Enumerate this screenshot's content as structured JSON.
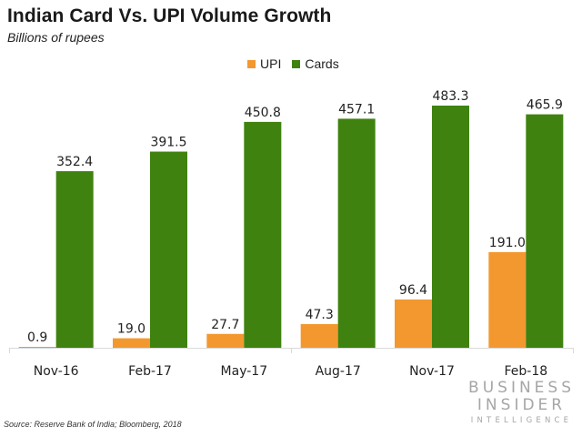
{
  "header": {
    "title": "Indian Card Vs. UPI Volume Growth",
    "subtitle": "Billions of rupees"
  },
  "footer": {
    "source": "Source: Reserve Bank of India;  Bloomberg, 2018",
    "logo": {
      "line1": "BUSINESS",
      "line2": "INSIDER",
      "line3": "INTELLIGENCE"
    }
  },
  "colors": {
    "upi": "#F3982F",
    "cards": "#3F820F",
    "axis": "#d9d9d9",
    "logo": "#a6a6a6"
  },
  "chart_data": {
    "type": "bar",
    "title": "Indian Card Vs. UPI Volume Growth",
    "subtitle": "Billions of rupees",
    "xlabel": "",
    "ylabel": "",
    "categories": [
      "Nov-16",
      "Feb-17",
      "May-17",
      "Aug-17",
      "Nov-17",
      "Feb-18"
    ],
    "series": [
      {
        "name": "UPI",
        "color": "#F3982F",
        "values": [
          0.9,
          19.0,
          27.7,
          47.3,
          96.4,
          191.0
        ],
        "labels": [
          "0.9",
          "19.0",
          "27.7",
          "47.3",
          "96.4",
          "191.0"
        ]
      },
      {
        "name": "Cards",
        "color": "#3F820F",
        "values": [
          352.4,
          391.5,
          450.8,
          457.1,
          483.3,
          465.9
        ],
        "labels": [
          "352.4",
          "391.5",
          "450.8",
          "457.1",
          "483.3",
          "465.9"
        ]
      }
    ],
    "ylim": [
      0,
      500
    ],
    "grid": false,
    "y_axis_visible": false,
    "legend": {
      "position": "top-center",
      "entries": [
        "UPI",
        "Cards"
      ]
    },
    "data_labels": true
  }
}
